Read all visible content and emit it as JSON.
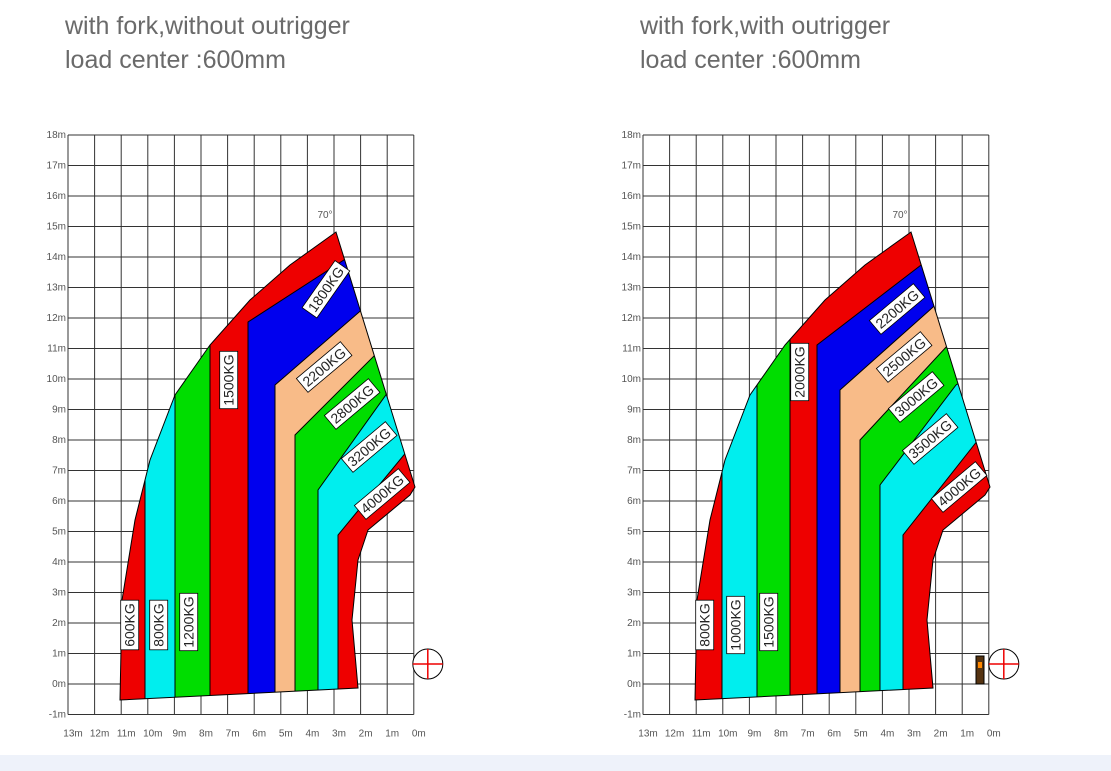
{
  "panels": [
    {
      "title": "with fork,without outrigger",
      "subtitle": "load center :600mm",
      "angle": "70°",
      "y_ticks": [
        "18m",
        "17m",
        "16m",
        "15m",
        "14m",
        "13m",
        "12m",
        "11m",
        "10m",
        "9m",
        "8m",
        "7m",
        "6m",
        "5m",
        "4m",
        "3m",
        "2m",
        "1m",
        "0m",
        "-1m"
      ],
      "x_ticks": [
        "13m",
        "12m",
        "11m",
        "10m",
        "9m",
        "8m",
        "7m",
        "6m",
        "5m",
        "4m",
        "3m",
        "2m",
        "1m",
        "0m"
      ],
      "zones": [
        "600KG",
        "800KG",
        "1200KG",
        "1500KG",
        "1800KG",
        "2200KG",
        "2800KG",
        "3200KG",
        "4000KG"
      ]
    },
    {
      "title": "with fork,with outrigger",
      "subtitle": "load center :600mm",
      "angle": "70°",
      "y_ticks": [
        "18m",
        "17m",
        "16m",
        "15m",
        "14m",
        "13m",
        "12m",
        "11m",
        "10m",
        "9m",
        "8m",
        "7m",
        "6m",
        "5m",
        "4m",
        "3m",
        "2m",
        "1m",
        "0m",
        "-1m"
      ],
      "x_ticks": [
        "13m",
        "12m",
        "11m",
        "10m",
        "9m",
        "8m",
        "7m",
        "6m",
        "5m",
        "4m",
        "3m",
        "2m",
        "1m",
        "0m"
      ],
      "zones": [
        "800KG",
        "1000KG",
        "1500KG",
        "2000KG",
        "2200KG",
        "2500KG",
        "3000KG",
        "3500KG",
        "4000KG"
      ]
    }
  ]
}
